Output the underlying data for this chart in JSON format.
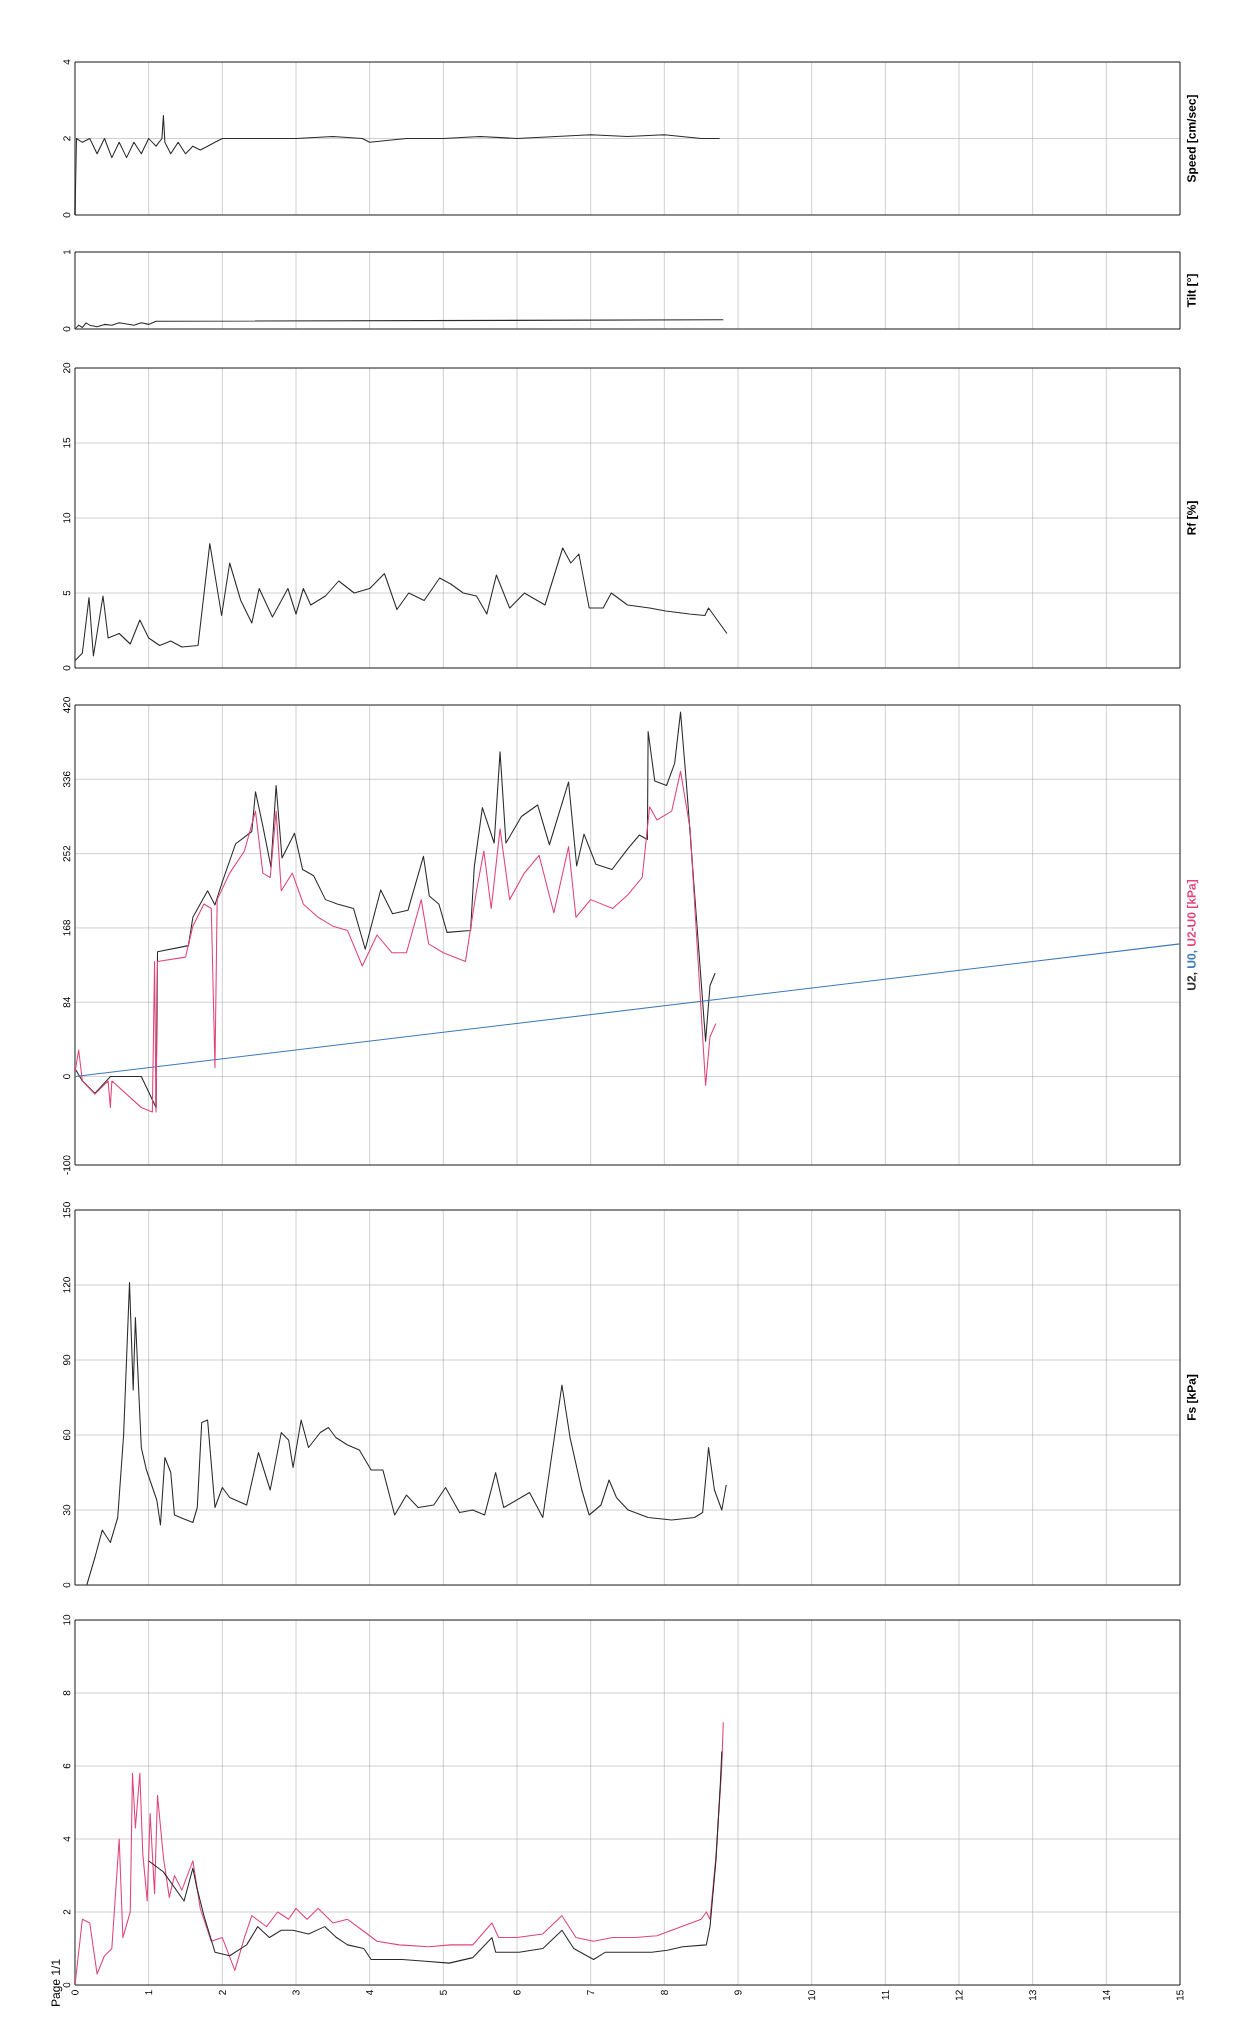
{
  "chart_data": [
    {
      "type": "line",
      "ylabel": "Speed [cm/sec]",
      "xlim": [
        0,
        15
      ],
      "xticks": [
        0,
        1,
        2,
        3,
        4,
        5,
        6,
        7,
        8,
        9,
        10,
        11,
        12,
        13,
        14,
        15
      ],
      "ylim": [
        0,
        4
      ],
      "yticks": [
        0,
        2,
        4
      ],
      "grid": true,
      "tick_labels": "y",
      "series": [
        {
          "color": "#2b2b2b",
          "x": [
            0,
            0.02,
            0.1,
            0.2,
            0.3,
            0.4,
            0.5,
            0.6,
            0.7,
            0.8,
            0.9,
            1.0,
            1.1,
            1.18,
            1.2,
            1.22,
            1.3,
            1.4,
            1.5,
            1.6,
            1.7,
            1.8,
            1.9,
            2.0,
            2.5,
            3.0,
            3.5,
            3.9,
            4.0,
            4.5,
            5.0,
            5.5,
            6.0,
            6.5,
            7.0,
            7.5,
            8.0,
            8.5,
            8.75
          ],
          "values": [
            0,
            2.0,
            1.9,
            2.0,
            1.6,
            2.0,
            1.5,
            1.9,
            1.5,
            1.9,
            1.6,
            2.0,
            1.8,
            2.0,
            2.6,
            1.9,
            1.6,
            1.9,
            1.6,
            1.8,
            1.7,
            1.8,
            1.9,
            2.0,
            2.0,
            2.0,
            2.05,
            2.0,
            1.9,
            2.0,
            2.0,
            2.05,
            2.0,
            2.05,
            2.1,
            2.05,
            2.1,
            2.0,
            2.0
          ]
        }
      ]
    },
    {
      "type": "line",
      "ylabel": "Tilt [°]",
      "xlim": [
        0,
        15
      ],
      "xticks": [
        0,
        1,
        2,
        3,
        4,
        5,
        6,
        7,
        8,
        9,
        10,
        11,
        12,
        13,
        14,
        15
      ],
      "ylim": [
        0,
        1
      ],
      "yticks": [
        0,
        1
      ],
      "grid": true,
      "tick_labels": "y",
      "series": [
        {
          "color": "#2b2b2b",
          "x": [
            0,
            0.05,
            0.1,
            0.15,
            0.2,
            0.3,
            0.4,
            0.5,
            0.6,
            0.8,
            0.9,
            1.0,
            1.1,
            8.8
          ],
          "values": [
            0,
            0.05,
            0.02,
            0.08,
            0.05,
            0.03,
            0.06,
            0.05,
            0.08,
            0.05,
            0.08,
            0.06,
            0.1,
            0.12
          ]
        }
      ]
    },
    {
      "type": "line",
      "ylabel": "Rf [%]",
      "xlim": [
        0,
        15
      ],
      "xticks": [
        0,
        1,
        2,
        3,
        4,
        5,
        6,
        7,
        8,
        9,
        10,
        11,
        12,
        13,
        14,
        15
      ],
      "ylim": [
        0,
        20
      ],
      "yticks": [
        0,
        5,
        10,
        15,
        20
      ],
      "grid": true,
      "tick_labels": "y",
      "series": [
        {
          "color": "#2b2b2b",
          "x": [
            0,
            0.1,
            0.19,
            0.25,
            0.38,
            0.45,
            0.6,
            0.75,
            0.88,
            1.0,
            1.15,
            1.3,
            1.45,
            1.67,
            1.83,
            1.99,
            2.1,
            2.25,
            2.4,
            2.5,
            2.68,
            2.89,
            3.0,
            3.1,
            3.2,
            3.4,
            3.58,
            3.79,
            4.0,
            4.2,
            4.37,
            4.53,
            4.74,
            4.95,
            5.1,
            5.27,
            5.45,
            5.59,
            5.72,
            5.9,
            6.1,
            6.38,
            6.62,
            6.73,
            6.84,
            6.98,
            7.17,
            7.28,
            7.5,
            7.8,
            8.02,
            8.34,
            8.55,
            8.6,
            8.85
          ],
          "values": [
            0.5,
            1.0,
            4.7,
            0.8,
            4.8,
            2.0,
            2.3,
            1.6,
            3.2,
            2.0,
            1.5,
            1.8,
            1.4,
            1.5,
            8.3,
            3.5,
            7.0,
            4.5,
            3.0,
            5.3,
            3.4,
            5.3,
            3.6,
            5.3,
            4.2,
            4.8,
            5.8,
            5.0,
            5.3,
            6.3,
            3.9,
            5.0,
            4.5,
            6.0,
            5.6,
            5.0,
            4.8,
            3.6,
            6.2,
            4.0,
            5.0,
            4.2,
            8.0,
            7.0,
            7.6,
            4.0,
            4.0,
            5.0,
            4.2,
            4.0,
            3.8,
            3.6,
            3.5,
            4.0,
            2.3
          ]
        }
      ]
    },
    {
      "type": "line",
      "xlim": [
        0,
        15
      ],
      "xticks": [
        0,
        1,
        2,
        3,
        4,
        5,
        6,
        7,
        8,
        9,
        10,
        11,
        12,
        13,
        14,
        15
      ],
      "ylim": [
        -100,
        420
      ],
      "yticks": [
        -100,
        0,
        84,
        168,
        252,
        336,
        420
      ],
      "grid": true,
      "tick_labels": "y",
      "series": [
        {
          "name": "U2,",
          "color": "#2b2b2b",
          "x": [
            0,
            0.1,
            0.27,
            0.48,
            0.9,
            1.1,
            1.12,
            1.54,
            1.6,
            1.8,
            1.9,
            2.0,
            2.18,
            2.4,
            2.45,
            2.55,
            2.66,
            2.73,
            2.81,
            2.98,
            3.09,
            3.24,
            3.4,
            3.56,
            3.78,
            3.94,
            4.15,
            4.31,
            4.52,
            4.73,
            4.81,
            4.94,
            5.05,
            5.37,
            5.42,
            5.53,
            5.69,
            5.77,
            5.85,
            6.06,
            6.28,
            6.44,
            6.7,
            6.81,
            6.91,
            7.07,
            7.29,
            7.5,
            7.66,
            7.77,
            7.78,
            7.87,
            8.03,
            8.14,
            8.22,
            8.3,
            8.56,
            8.62,
            8.69
          ],
          "values": [
            9,
            -5,
            -19,
            0,
            0,
            -35,
            141,
            148,
            180,
            210,
            194,
            220,
            263,
            277,
            322,
            283,
            237,
            329,
            247,
            275,
            234,
            227,
            200,
            195,
            190,
            144,
            211,
            184,
            188,
            249,
            204,
            195,
            163,
            165,
            237,
            304,
            264,
            367,
            264,
            294,
            307,
            262,
            333,
            238,
            274,
            240,
            234,
            257,
            273,
            268,
            390,
            334,
            329,
            354,
            412,
            331,
            40,
            103,
            117
          ]
        },
        {
          "name": "U0,",
          "color": "#3a78b8",
          "x": [
            0,
            15
          ],
          "values": [
            0,
            150
          ]
        },
        {
          "name": "U2-U0 [kPa]",
          "color": "#e0457b",
          "x": [
            0,
            0.05,
            0.1,
            0.27,
            0.45,
            0.48,
            0.5,
            0.9,
            1.05,
            1.08,
            1.1,
            1.12,
            1.5,
            1.6,
            1.75,
            1.85,
            1.9,
            1.93,
            2.1,
            2.3,
            2.45,
            2.55,
            2.65,
            2.73,
            2.8,
            2.95,
            3.1,
            3.3,
            3.5,
            3.7,
            3.9,
            4.1,
            4.3,
            4.5,
            4.7,
            4.8,
            5.0,
            5.3,
            5.45,
            5.55,
            5.65,
            5.77,
            5.9,
            6.1,
            6.3,
            6.5,
            6.7,
            6.8,
            7.0,
            7.3,
            7.5,
            7.7,
            7.8,
            7.9,
            8.1,
            8.22,
            8.35,
            8.56,
            8.62,
            8.7
          ],
          "values": [
            5,
            30,
            -5,
            -20,
            -5,
            -35,
            -5,
            -35,
            -40,
            130,
            -40,
            130,
            135,
            170,
            195,
            190,
            10,
            200,
            230,
            255,
            300,
            230,
            225,
            300,
            210,
            230,
            195,
            180,
            170,
            165,
            125,
            160,
            140,
            140,
            200,
            150,
            140,
            130,
            210,
            255,
            190,
            280,
            200,
            230,
            250,
            185,
            260,
            180,
            200,
            190,
            205,
            225,
            305,
            290,
            300,
            345,
            280,
            -10,
            45,
            60
          ]
        }
      ]
    },
    {
      "type": "line",
      "ylabel": "Fs [kPa]",
      "xlim": [
        0,
        15
      ],
      "xticks": [
        0,
        1,
        2,
        3,
        4,
        5,
        6,
        7,
        8,
        9,
        10,
        11,
        12,
        13,
        14,
        15
      ],
      "ylim": [
        0,
        150
      ],
      "yticks": [
        0,
        30,
        60,
        90,
        120,
        150
      ],
      "grid": true,
      "tick_labels": "y",
      "series": [
        {
          "color": "#2b2b2b",
          "x": [
            0.16,
            0.27,
            0.37,
            0.48,
            0.58,
            0.66,
            0.74,
            0.79,
            0.82,
            0.9,
            0.97,
            1.11,
            1.16,
            1.22,
            1.3,
            1.35,
            1.43,
            1.6,
            1.66,
            1.72,
            1.8,
            1.9,
            2.0,
            2.1,
            2.33,
            2.49,
            2.65,
            2.8,
            2.9,
            2.96,
            3.07,
            3.17,
            3.33,
            3.44,
            3.54,
            3.7,
            3.86,
            4.02,
            4.18,
            4.34,
            4.5,
            4.66,
            4.87,
            5.03,
            5.22,
            5.4,
            5.56,
            5.71,
            5.82,
            6.17,
            6.35,
            6.61,
            6.72,
            6.88,
            6.98,
            7.14,
            7.25,
            7.35,
            7.51,
            7.78,
            8.1,
            8.41,
            8.52,
            8.6,
            8.68,
            8.78,
            8.84
          ],
          "values": [
            0,
            11,
            22,
            17,
            27,
            60,
            121,
            78,
            107,
            55,
            46,
            34,
            24,
            51,
            45,
            28,
            27,
            25,
            31,
            65,
            66,
            31,
            39,
            35,
            32,
            53,
            38,
            61,
            58,
            47,
            66,
            55,
            61,
            63,
            59,
            56,
            54,
            46,
            46,
            28,
            36,
            31,
            32,
            39,
            29,
            30,
            28,
            45,
            31,
            37,
            27,
            80,
            59,
            38,
            28,
            32,
            42,
            35,
            30,
            27,
            26,
            27,
            29,
            55,
            38,
            30,
            40
          ]
        }
      ]
    },
    {
      "type": "line",
      "xlim": [
        0,
        15
      ],
      "xticks": [
        0,
        1,
        2,
        3,
        4,
        5,
        6,
        7,
        8,
        9,
        10,
        11,
        12,
        13,
        14,
        15
      ],
      "ylim": [
        0,
        10
      ],
      "yticks": [
        0,
        2,
        4,
        6,
        8,
        10
      ],
      "grid": true,
      "annotations": [
        "Page 1/1"
      ],
      "series": [
        {
          "color": "#e0457b",
          "x": [
            0,
            0.1,
            0.2,
            0.3,
            0.4,
            0.5,
            0.6,
            0.65,
            0.75,
            0.78,
            0.82,
            0.88,
            0.92,
            0.98,
            1.02,
            1.08,
            1.12,
            1.2,
            1.28,
            1.35,
            1.45,
            1.6,
            1.7,
            1.85,
            2.0,
            2.17,
            2.3,
            2.4,
            2.6,
            2.75,
            2.9,
            3.0,
            3.15,
            3.3,
            3.5,
            3.7,
            3.9,
            4.1,
            4.4,
            4.8,
            5.1,
            5.4,
            5.66,
            5.75,
            6.0,
            6.35,
            6.61,
            6.8,
            7.04,
            7.3,
            7.6,
            7.9,
            8.1,
            8.5,
            8.57,
            8.62,
            8.7,
            8.78,
            8.8
          ],
          "values": [
            0,
            1.8,
            1.7,
            0.3,
            0.8,
            1.0,
            4.0,
            1.3,
            2.0,
            5.8,
            4.3,
            5.8,
            3.6,
            2.3,
            4.7,
            2.5,
            5.2,
            3.5,
            2.4,
            3.0,
            2.6,
            3.4,
            2.1,
            1.2,
            1.3,
            0.4,
            1.3,
            1.9,
            1.6,
            2.0,
            1.8,
            2.1,
            1.8,
            2.1,
            1.7,
            1.8,
            1.5,
            1.2,
            1.1,
            1.05,
            1.1,
            1.1,
            1.7,
            1.3,
            1.3,
            1.4,
            1.9,
            1.3,
            1.2,
            1.3,
            1.3,
            1.35,
            1.5,
            1.8,
            2.0,
            1.8,
            3.5,
            6.0,
            7.2
          ]
        },
        {
          "color": "#2b2b2b",
          "x": [
            1.0,
            1.2,
            1.48,
            1.6,
            1.65,
            1.75,
            1.9,
            2.1,
            2.33,
            2.48,
            2.64,
            2.8,
            2.96,
            3.17,
            3.39,
            3.55,
            3.7,
            3.92,
            4.02,
            4.23,
            4.44,
            4.76,
            5.08,
            5.4,
            5.66,
            5.71,
            6.03,
            6.35,
            6.61,
            6.77,
            7.04,
            7.2,
            7.51,
            7.83,
            8.04,
            8.25,
            8.57,
            8.62,
            8.7,
            8.76,
            8.78
          ],
          "values": [
            3.4,
            3.1,
            2.3,
            3.2,
            2.7,
            1.9,
            0.9,
            0.8,
            1.1,
            1.6,
            1.3,
            1.5,
            1.5,
            1.4,
            1.6,
            1.3,
            1.1,
            1.0,
            0.7,
            0.7,
            0.7,
            0.65,
            0.6,
            0.75,
            1.3,
            0.9,
            0.9,
            1.0,
            1.5,
            1.0,
            0.7,
            0.9,
            0.9,
            0.9,
            0.95,
            1.05,
            1.1,
            1.6,
            3.4,
            5.5,
            6.4
          ]
        }
      ]
    }
  ]
}
